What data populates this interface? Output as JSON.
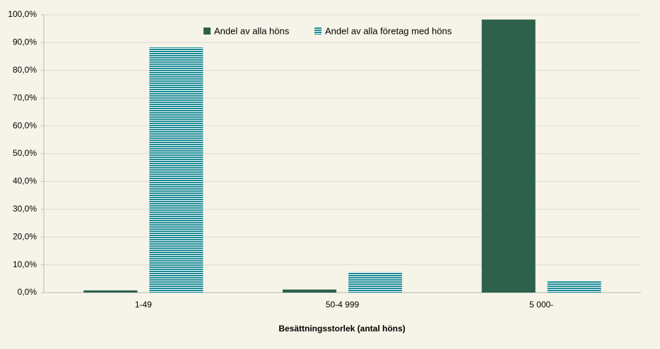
{
  "chart_data": {
    "type": "bar",
    "x_label": "Besättningsstorlek (antal höns)",
    "categories": [
      "1-49",
      "50-4 999",
      "5 000-"
    ],
    "series": [
      {
        "name": "Andel av alla höns",
        "color": "#2d614c",
        "values": [
          0.8,
          1.1,
          98.3
        ]
      },
      {
        "name": "Andel av alla företag med höns",
        "color": "#1a8a94",
        "values": [
          88.3,
          7.4,
          4.1
        ]
      }
    ],
    "ylim": [
      0,
      100
    ],
    "yticks": [
      {
        "value": 0,
        "label": "0,0%"
      },
      {
        "value": 10,
        "label": "10,0%"
      },
      {
        "value": 20,
        "label": "20,0%"
      },
      {
        "value": 30,
        "label": "30,0%"
      },
      {
        "value": 40,
        "label": "40,0%"
      },
      {
        "value": 50,
        "label": "50,0%"
      },
      {
        "value": 60,
        "label": "60,0%"
      },
      {
        "value": 70,
        "label": "70,0%"
      },
      {
        "value": 80,
        "label": "80,0%"
      },
      {
        "value": 90,
        "label": "90,0%"
      },
      {
        "value": 100,
        "label": "100,0%"
      }
    ],
    "grid": true
  }
}
